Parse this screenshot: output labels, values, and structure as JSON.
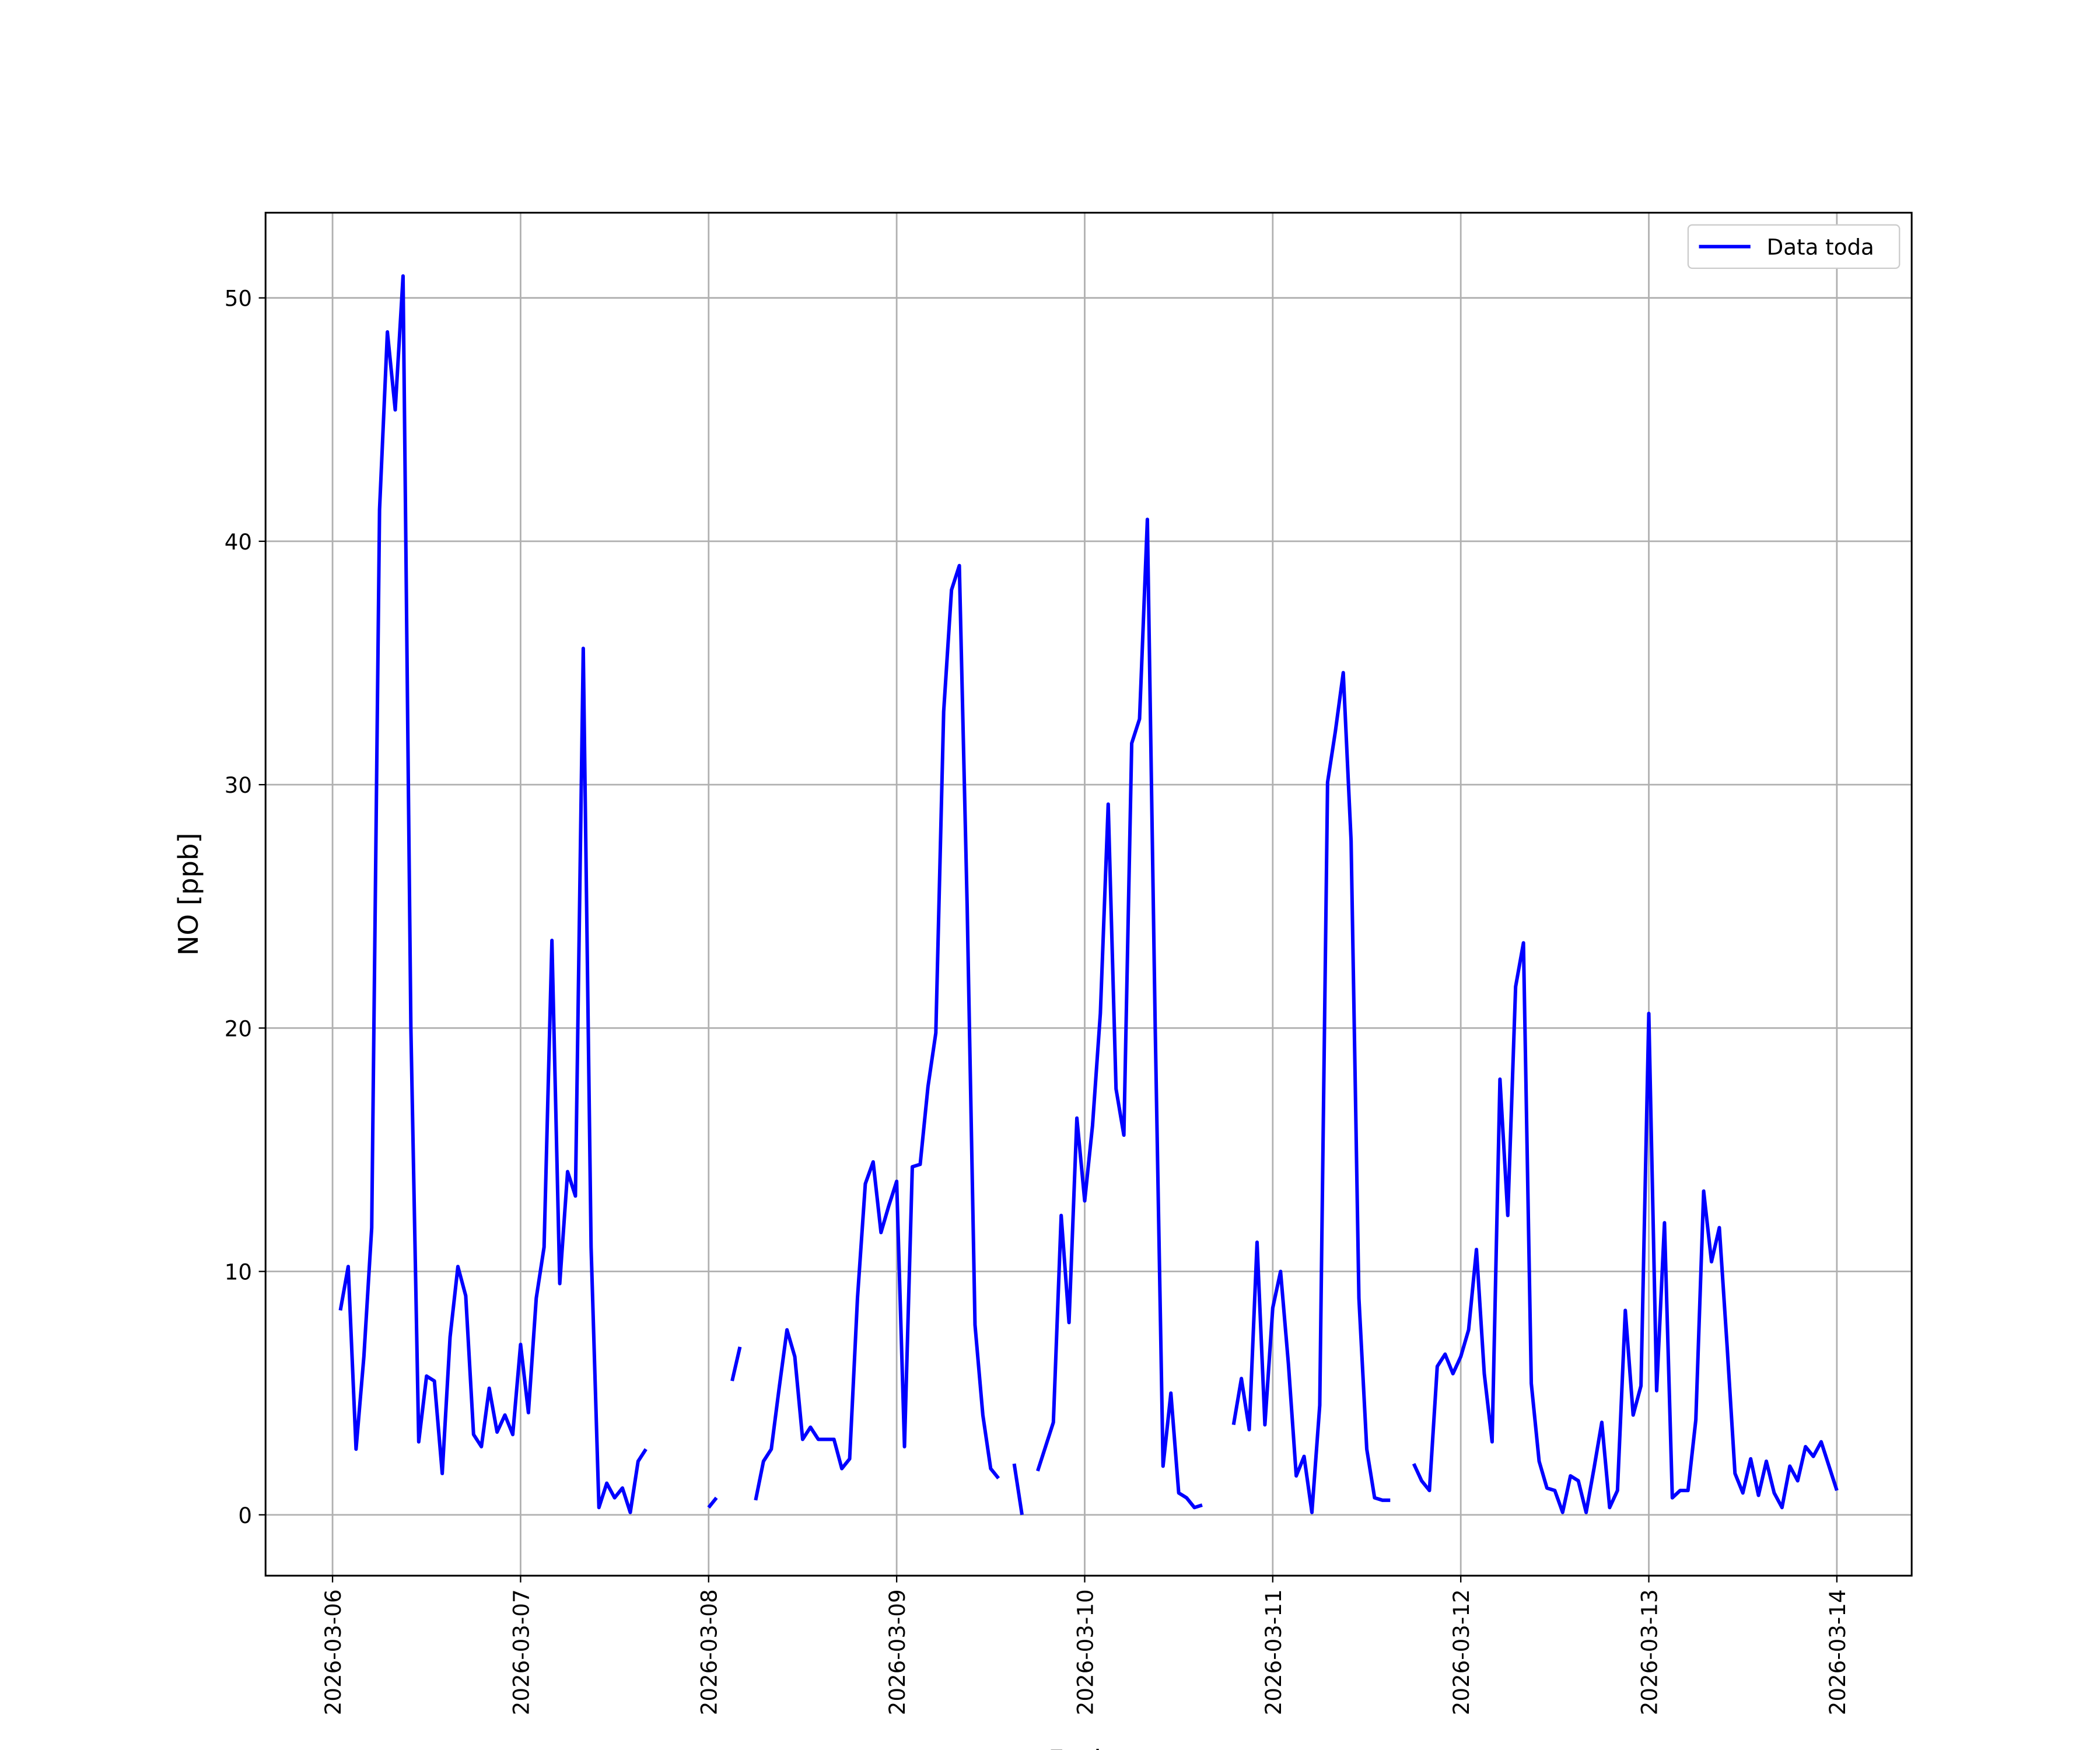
{
  "chart_data": {
    "type": "line",
    "x_label": "Fecha",
    "y_label": "NO [ppb]",
    "x": [
      "2026-03-06 01:00",
      "2026-03-06 02:00",
      "2026-03-06 03:00",
      "2026-03-06 04:00",
      "2026-03-06 05:00",
      "2026-03-06 06:00",
      "2026-03-06 07:00",
      "2026-03-06 08:00",
      "2026-03-06 09:00",
      "2026-03-06 10:00",
      "2026-03-06 11:00",
      "2026-03-06 12:00",
      "2026-03-06 13:00",
      "2026-03-06 14:00",
      "2026-03-06 15:00",
      "2026-03-06 16:00",
      "2026-03-06 17:00",
      "2026-03-06 18:00",
      "2026-03-06 19:00",
      "2026-03-06 20:00",
      "2026-03-06 21:00",
      "2026-03-06 22:00",
      "2026-03-06 23:00",
      "2026-03-07 00:00",
      "2026-03-07 01:00",
      "2026-03-07 02:00",
      "2026-03-07 03:00",
      "2026-03-07 04:00",
      "2026-03-07 05:00",
      "2026-03-07 06:00",
      "2026-03-07 07:00",
      "2026-03-07 08:00",
      "2026-03-07 09:00",
      "2026-03-07 10:00",
      "2026-03-07 11:00",
      "2026-03-07 12:00",
      "2026-03-07 13:00",
      "2026-03-07 14:00",
      "2026-03-07 15:00",
      "2026-03-07 16:00",
      "2026-03-07 17:00",
      "2026-03-07 18:00",
      "2026-03-07 19:00",
      "2026-03-07 20:00",
      "2026-03-07 21:00",
      "2026-03-07 22:00",
      "2026-03-07 23:00",
      "2026-03-08 00:00",
      "2026-03-08 01:00",
      "2026-03-08 02:00",
      "2026-03-08 03:00",
      "2026-03-08 04:00",
      "2026-03-08 05:00",
      "2026-03-08 06:00",
      "2026-03-08 07:00",
      "2026-03-08 08:00",
      "2026-03-08 09:00",
      "2026-03-08 10:00",
      "2026-03-08 11:00",
      "2026-03-08 12:00",
      "2026-03-08 13:00",
      "2026-03-08 14:00",
      "2026-03-08 15:00",
      "2026-03-08 16:00",
      "2026-03-08 17:00",
      "2026-03-08 18:00",
      "2026-03-08 19:00",
      "2026-03-08 20:00",
      "2026-03-08 21:00",
      "2026-03-08 22:00",
      "2026-03-08 23:00",
      "2026-03-09 00:00",
      "2026-03-09 01:00",
      "2026-03-09 02:00",
      "2026-03-09 03:00",
      "2026-03-09 04:00",
      "2026-03-09 05:00",
      "2026-03-09 06:00",
      "2026-03-09 07:00",
      "2026-03-09 08:00",
      "2026-03-09 09:00",
      "2026-03-09 10:00",
      "2026-03-09 11:00",
      "2026-03-09 12:00",
      "2026-03-09 13:00",
      "2026-03-09 14:00",
      "2026-03-09 15:00",
      "2026-03-09 16:00",
      "2026-03-09 17:00",
      "2026-03-09 18:00",
      "2026-03-09 19:00",
      "2026-03-09 20:00",
      "2026-03-09 21:00",
      "2026-03-09 22:00",
      "2026-03-09 23:00",
      "2026-03-10 00:00",
      "2026-03-10 01:00",
      "2026-03-10 02:00",
      "2026-03-10 03:00",
      "2026-03-10 04:00",
      "2026-03-10 05:00",
      "2026-03-10 06:00",
      "2026-03-10 07:00",
      "2026-03-10 08:00",
      "2026-03-10 09:00",
      "2026-03-10 10:00",
      "2026-03-10 11:00",
      "2026-03-10 12:00",
      "2026-03-10 13:00",
      "2026-03-10 14:00",
      "2026-03-10 15:00",
      "2026-03-10 16:00",
      "2026-03-10 17:00",
      "2026-03-10 18:00",
      "2026-03-10 19:00",
      "2026-03-10 20:00",
      "2026-03-10 21:00",
      "2026-03-10 22:00",
      "2026-03-10 23:00",
      "2026-03-11 00:00",
      "2026-03-11 01:00",
      "2026-03-11 02:00",
      "2026-03-11 03:00",
      "2026-03-11 04:00",
      "2026-03-11 05:00",
      "2026-03-11 06:00",
      "2026-03-11 07:00",
      "2026-03-11 08:00",
      "2026-03-11 09:00",
      "2026-03-11 10:00",
      "2026-03-11 11:00",
      "2026-03-11 12:00",
      "2026-03-11 13:00",
      "2026-03-11 14:00",
      "2026-03-11 15:00",
      "2026-03-11 16:00",
      "2026-03-11 17:00",
      "2026-03-11 18:00",
      "2026-03-11 19:00",
      "2026-03-11 20:00",
      "2026-03-11 21:00",
      "2026-03-11 22:00",
      "2026-03-11 23:00",
      "2026-03-12 00:00",
      "2026-03-12 01:00",
      "2026-03-12 02:00",
      "2026-03-12 03:00",
      "2026-03-12 04:00",
      "2026-03-12 05:00",
      "2026-03-12 06:00",
      "2026-03-12 07:00",
      "2026-03-12 08:00",
      "2026-03-12 09:00",
      "2026-03-12 10:00",
      "2026-03-12 11:00",
      "2026-03-12 12:00",
      "2026-03-12 13:00",
      "2026-03-12 14:00",
      "2026-03-12 15:00",
      "2026-03-12 16:00",
      "2026-03-12 17:00",
      "2026-03-12 18:00",
      "2026-03-12 19:00",
      "2026-03-12 20:00",
      "2026-03-12 21:00",
      "2026-03-12 22:00",
      "2026-03-12 23:00",
      "2026-03-13 00:00",
      "2026-03-13 01:00",
      "2026-03-13 02:00",
      "2026-03-13 03:00",
      "2026-03-13 04:00",
      "2026-03-13 05:00",
      "2026-03-13 06:00",
      "2026-03-13 07:00",
      "2026-03-13 08:00",
      "2026-03-13 09:00",
      "2026-03-13 10:00",
      "2026-03-13 11:00",
      "2026-03-13 12:00",
      "2026-03-13 13:00",
      "2026-03-13 14:00",
      "2026-03-13 15:00",
      "2026-03-13 16:00",
      "2026-03-13 17:00",
      "2026-03-13 18:00",
      "2026-03-13 19:00",
      "2026-03-13 20:00",
      "2026-03-13 21:00",
      "2026-03-13 22:00",
      "2026-03-13 23:00",
      "2026-03-14 00:00"
    ],
    "series": [
      {
        "name": "Data toda",
        "color": "#0000ff",
        "values": [
          8.4,
          10.2,
          2.7,
          6.5,
          11.8,
          41.3,
          48.6,
          45.4,
          50.9,
          20.0,
          3.0,
          5.7,
          5.5,
          1.7,
          7.3,
          10.2,
          9.0,
          3.3,
          2.8,
          5.2,
          3.4,
          4.1,
          3.3,
          7.0,
          4.2,
          8.9,
          11.0,
          23.6,
          9.5,
          14.1,
          13.1,
          35.6,
          11.0,
          0.3,
          1.3,
          0.7,
          1.1,
          0.1,
          2.2,
          2.7,
          null,
          null,
          null,
          null,
          null,
          null,
          null,
          0.3,
          0.7,
          null,
          5.5,
          6.9,
          null,
          0.6,
          2.2,
          2.7,
          5.2,
          7.6,
          6.5,
          3.1,
          3.6,
          3.1,
          3.1,
          3.1,
          1.9,
          2.3,
          8.9,
          13.6,
          14.5,
          11.6,
          12.7,
          13.7,
          2.8,
          14.3,
          14.4,
          17.6,
          19.8,
          33.0,
          38.0,
          39.0,
          25.0,
          7.8,
          4.1,
          1.9,
          1.5,
          null,
          2.1,
          0.0,
          null,
          1.8,
          2.8,
          3.8,
          12.3,
          7.9,
          16.3,
          12.9,
          16.0,
          20.6,
          29.2,
          17.5,
          15.6,
          31.7,
          32.7,
          40.9,
          20.0,
          2.0,
          5.0,
          0.9,
          0.7,
          0.3,
          0.4,
          null,
          null,
          null,
          3.7,
          5.6,
          3.5,
          11.2,
          3.7,
          8.5,
          10.0,
          6.2,
          1.6,
          2.4,
          0.1,
          4.5,
          30.1,
          32.2,
          34.6,
          27.7,
          8.9,
          2.7,
          0.7,
          0.6,
          0.6,
          null,
          null,
          2.1,
          1.4,
          1.0,
          6.1,
          6.6,
          5.8,
          6.5,
          7.6,
          10.9,
          5.8,
          3.0,
          17.9,
          12.3,
          21.7,
          23.5,
          5.4,
          2.2,
          1.1,
          1.0,
          0.1,
          1.6,
          1.4,
          0.1,
          1.9,
          3.8,
          0.3,
          1.0,
          8.4,
          4.1,
          5.3,
          20.6,
          5.1,
          12.0,
          0.7,
          1.0,
          1.0,
          3.9,
          13.3,
          10.4,
          11.8,
          6.9,
          1.7,
          0.9,
          2.3,
          0.8,
          2.2,
          0.9,
          0.3,
          2.0,
          1.4,
          2.8,
          2.4,
          3.0,
          2.0,
          1.0
        ]
      }
    ],
    "xlim": [
      "2026-03-05 15:27",
      "2026-03-14 09:33"
    ],
    "xticks": [
      "2026-03-06",
      "2026-03-07",
      "2026-03-08",
      "2026-03-09",
      "2026-03-10",
      "2026-03-11",
      "2026-03-12",
      "2026-03-13",
      "2026-03-14"
    ],
    "ylim": [
      -2.5,
      53.5
    ],
    "yticks": [
      0,
      10,
      20,
      30,
      40,
      50
    ],
    "grid": true,
    "legend": "upper right"
  }
}
